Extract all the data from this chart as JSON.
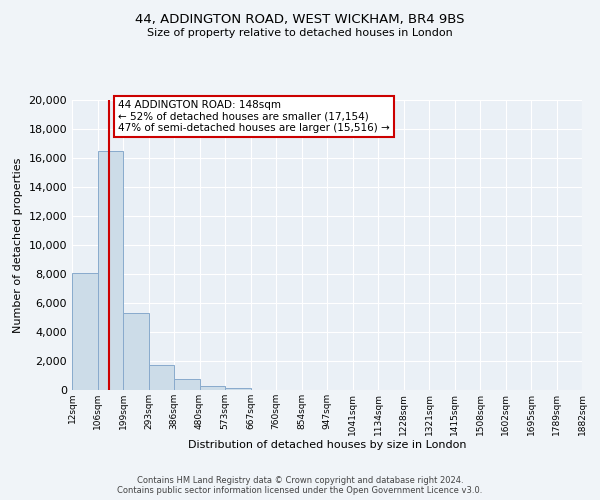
{
  "title": "44, ADDINGTON ROAD, WEST WICKHAM, BR4 9BS",
  "subtitle": "Size of property relative to detached houses in London",
  "xlabel": "Distribution of detached houses by size in London",
  "ylabel": "Number of detached properties",
  "bin_labels": [
    "12sqm",
    "106sqm",
    "199sqm",
    "293sqm",
    "386sqm",
    "480sqm",
    "573sqm",
    "667sqm",
    "760sqm",
    "854sqm",
    "947sqm",
    "1041sqm",
    "1134sqm",
    "1228sqm",
    "1321sqm",
    "1415sqm",
    "1508sqm",
    "1602sqm",
    "1695sqm",
    "1789sqm",
    "1882sqm"
  ],
  "bin_values": [
    8100,
    16500,
    5300,
    1750,
    780,
    300,
    150,
    0,
    0,
    0,
    0,
    0,
    0,
    0,
    0,
    0,
    0,
    0,
    0,
    0
  ],
  "ylim": [
    0,
    20000
  ],
  "yticks": [
    0,
    2000,
    4000,
    6000,
    8000,
    10000,
    12000,
    14000,
    16000,
    18000,
    20000
  ],
  "bar_color": "#ccdce8",
  "bar_edge_color": "#88aacc",
  "property_line_color": "#cc0000",
  "annotation_text": "44 ADDINGTON ROAD: 148sqm\n← 52% of detached houses are smaller (17,154)\n47% of semi-detached houses are larger (15,516) →",
  "annotation_box_facecolor": "#ffffff",
  "annotation_box_edgecolor": "#cc0000",
  "footer_line1": "Contains HM Land Registry data © Crown copyright and database right 2024.",
  "footer_line2": "Contains public sector information licensed under the Open Government Licence v3.0.",
  "background_color": "#f0f4f8",
  "plot_bg_color": "#eaf0f6"
}
